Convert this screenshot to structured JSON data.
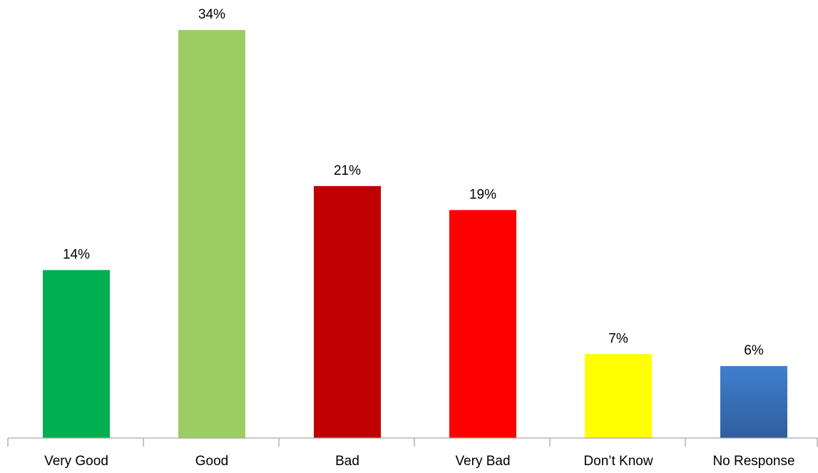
{
  "chart_data": {
    "type": "bar",
    "categories": [
      "Very Good",
      "Good",
      "Bad",
      "Very Bad",
      "Don’t Know",
      "No Response"
    ],
    "values": [
      14,
      34,
      21,
      19,
      7,
      6
    ],
    "data_labels": [
      "14%",
      "34%",
      "21%",
      "19%",
      "7%",
      "6%"
    ],
    "unit": "%",
    "colors": [
      "#00b050",
      "#9bcd63",
      "#c00000",
      "#ff0000",
      "#ffff00",
      "#3a74bd"
    ],
    "title": "",
    "xlabel": "",
    "ylabel": "",
    "ylim": [
      0,
      34
    ],
    "grid": false,
    "legend": "none"
  }
}
